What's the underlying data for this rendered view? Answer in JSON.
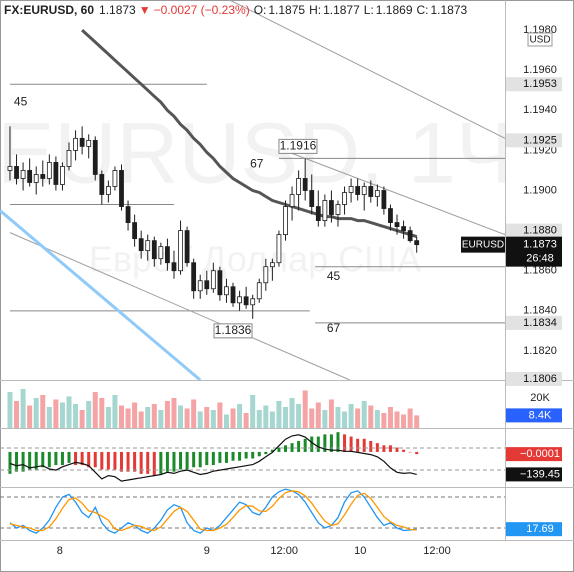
{
  "header": {
    "symbol": "FX:EURUSD, 60",
    "last": "1.1873",
    "arrow": "▼",
    "change": "−0.0027 (−0.23%)",
    "ohlc": [
      [
        "O:",
        "1.1875"
      ],
      [
        "H:",
        "1.1877"
      ],
      [
        "L:",
        "1.1869"
      ],
      [
        "C:",
        "1.1873"
      ]
    ]
  },
  "chart_data": [
    {
      "type": "candlestick",
      "currency": "USD",
      "symbol_label": "EURUSD",
      "countdown": "26:48",
      "watermark": [
        "EURUSD, 1Ч",
        "Евро / Доллар США"
      ],
      "up_color": "#ffffff",
      "down_color": "#1e1e1e",
      "xlim": [
        -1.52,
        75.46
      ],
      "xticks": [
        {
          "value": 7.6,
          "label": "8"
        },
        {
          "value": 30,
          "label": "9"
        },
        {
          "value": 41.8,
          "label": "12:00"
        },
        {
          "value": 53.4,
          "label": "10"
        },
        {
          "value": 65.1,
          "label": "12:00"
        }
      ],
      "ylim": [
        1.18055,
        1.1995
      ],
      "yticks": [
        {
          "value": 1.198,
          "label": "1.1980"
        },
        {
          "value": 1.196,
          "label": "1.1960"
        },
        {
          "value": 1.194,
          "label": "1.1940"
        },
        {
          "value": 1.192,
          "label": "1.1920"
        },
        {
          "value": 1.19,
          "label": "1.1900"
        },
        {
          "value": 1.186,
          "label": "1.1860"
        },
        {
          "value": 1.184,
          "label": "1.1840"
        },
        {
          "value": 1.182,
          "label": "1.1820"
        }
      ],
      "price_labels": [
        {
          "value": 1.1953,
          "label": "1.1953"
        },
        {
          "value": 1.1925,
          "label": "1.1925"
        },
        {
          "value": 1.188,
          "label": "1.1880"
        },
        {
          "value": 1.1834,
          "label": "1.1834"
        },
        {
          "value": 1.1806,
          "label": "1.1806"
        }
      ],
      "levels": [
        {
          "value": 1.1953,
          "from": 0,
          "to": 30
        },
        {
          "value": 1.1893,
          "from": 0,
          "to": 25
        },
        {
          "value": 1.184,
          "from": 0,
          "to": 45.7
        },
        {
          "value": 1.1916,
          "from": 41,
          "to": 75.46
        },
        {
          "value": 1.1862,
          "from": 46.5,
          "to": 75.46
        },
        {
          "value": 1.1834,
          "from": 46.5,
          "to": 75.46
        }
      ],
      "trend_lines": [
        {
          "x": [
            33.5,
            75.46
          ],
          "y": [
            1.1995,
            1.1926
          ],
          "color": "#9e9e9e"
        },
        {
          "x": [
            41.8,
            75.46
          ],
          "y": [
            1.192,
            1.1878
          ],
          "color": "#9e9e9e"
        },
        {
          "x": [
            0,
            51.8
          ],
          "y": [
            1.1879,
            1.18055
          ],
          "color": "#9e9e9e"
        },
        {
          "x": [
            -1.52,
            29
          ],
          "y": [
            1.189,
            1.18055
          ],
          "color": "#90caf9"
        }
      ],
      "annotations": [
        {
          "text": "45",
          "x": 0.6,
          "y": 1.1944
        },
        {
          "text": "67",
          "x": 36.6,
          "y": 1.1913
        },
        {
          "text": "1.1916",
          "x": 43.9,
          "y": 1.1922,
          "box": true
        },
        {
          "text": "1.1836",
          "x": 34,
          "y": 1.183,
          "box": true
        },
        {
          "text": "45",
          "x": 48.3,
          "y": 1.1857
        },
        {
          "text": "67",
          "x": 48.3,
          "y": 1.1831
        }
      ],
      "overlays": [
        {
          "color": "#555555",
          "values": [
            null,
            null,
            null,
            null,
            null,
            null,
            null,
            null,
            null,
            null,
            null,
            1.198,
            1.1977,
            1.1974,
            1.1971,
            1.1968,
            1.1965,
            1.1962,
            1.1959,
            1.1956,
            1.1953,
            1.195,
            1.1947,
            1.1944,
            1.194,
            1.1937,
            1.1933,
            1.193,
            1.1926,
            1.1923,
            1.1919,
            1.1916,
            1.1912,
            1.1909,
            1.1906,
            1.1904,
            1.1902,
            1.19,
            1.1899,
            1.1897,
            1.1895,
            1.1894,
            1.1893,
            1.1892,
            1.1891,
            1.189,
            1.1889,
            1.1888,
            1.1887,
            1.1887,
            1.1886,
            1.1886,
            1.1886,
            1.1885,
            1.1885,
            1.1884,
            1.1883,
            1.1882,
            1.1881,
            1.188,
            1.1879,
            1.1878,
            1.1877
          ]
        }
      ],
      "candles": [
        [
          1.191,
          1.1932,
          1.1905,
          1.1912
        ],
        [
          1.1912,
          1.1918,
          1.1903,
          1.1906
        ],
        [
          1.1906,
          1.1914,
          1.19,
          1.191
        ],
        [
          1.191,
          1.1916,
          1.1902,
          1.1904
        ],
        [
          1.1904,
          1.1912,
          1.1898,
          1.1908
        ],
        [
          1.1908,
          1.1915,
          1.1902,
          1.1906
        ],
        [
          1.1906,
          1.1918,
          1.1903,
          1.1914
        ],
        [
          1.1914,
          1.1917,
          1.19,
          1.1903
        ],
        [
          1.1903,
          1.1914,
          1.19,
          1.1912
        ],
        [
          1.1912,
          1.1924,
          1.191,
          1.192
        ],
        [
          1.192,
          1.193,
          1.1915,
          1.1926
        ],
        [
          1.1926,
          1.1932,
          1.1918,
          1.1922
        ],
        [
          1.1922,
          1.1928,
          1.1916,
          1.1925
        ],
        [
          1.1925,
          1.1927,
          1.1905,
          1.1908
        ],
        [
          1.1908,
          1.191,
          1.1893,
          1.1898
        ],
        [
          1.1898,
          1.1905,
          1.1894,
          1.1902
        ],
        [
          1.1902,
          1.1912,
          1.19,
          1.191
        ],
        [
          1.191,
          1.1913,
          1.189,
          1.1892
        ],
        [
          1.1892,
          1.1895,
          1.188,
          1.1884
        ],
        [
          1.1884,
          1.1888,
          1.1872,
          1.1876
        ],
        [
          1.1876,
          1.188,
          1.1866,
          1.187
        ],
        [
          1.187,
          1.1878,
          1.1865,
          1.1875
        ],
        [
          1.1875,
          1.1877,
          1.1862,
          1.1866
        ],
        [
          1.1866,
          1.1874,
          1.1863,
          1.1872
        ],
        [
          1.1872,
          1.1876,
          1.186,
          1.1864
        ],
        [
          1.1864,
          1.187,
          1.1856,
          1.186
        ],
        [
          1.186,
          1.1885,
          1.1858,
          1.188
        ],
        [
          1.188,
          1.1882,
          1.1862,
          1.1864
        ],
        [
          1.1864,
          1.1866,
          1.1846,
          1.185
        ],
        [
          1.185,
          1.1858,
          1.1846,
          1.1855
        ],
        [
          1.1855,
          1.186,
          1.1848,
          1.1851
        ],
        [
          1.1851,
          1.1864,
          1.1849,
          1.186
        ],
        [
          1.186,
          1.1862,
          1.1845,
          1.1848
        ],
        [
          1.1848,
          1.1856,
          1.1844,
          1.1852
        ],
        [
          1.1852,
          1.1854,
          1.1842,
          1.1844
        ],
        [
          1.1844,
          1.185,
          1.184,
          1.1847
        ],
        [
          1.1847,
          1.1852,
          1.1841,
          1.1843
        ],
        [
          1.1843,
          1.1848,
          1.1836,
          1.1846
        ],
        [
          1.1846,
          1.1856,
          1.1844,
          1.1854
        ],
        [
          1.1854,
          1.1866,
          1.185,
          1.1862
        ],
        [
          1.1862,
          1.1866,
          1.1855,
          1.1864
        ],
        [
          1.1864,
          1.188,
          1.1862,
          1.1878
        ],
        [
          1.1878,
          1.1895,
          1.1875,
          1.1892
        ],
        [
          1.1892,
          1.1902,
          1.1885,
          1.1898
        ],
        [
          1.1898,
          1.191,
          1.189,
          1.1906
        ],
        [
          1.1906,
          1.1916,
          1.1895,
          1.19
        ],
        [
          1.19,
          1.1908,
          1.1888,
          1.1892
        ],
        [
          1.1892,
          1.19,
          1.1882,
          1.1885
        ],
        [
          1.1885,
          1.1898,
          1.1882,
          1.1895
        ],
        [
          1.1895,
          1.19,
          1.1884,
          1.1888
        ],
        [
          1.1888,
          1.1895,
          1.1882,
          1.1893
        ],
        [
          1.1893,
          1.1902,
          1.1888,
          1.1899
        ],
        [
          1.1899,
          1.1906,
          1.1894,
          1.1902
        ],
        [
          1.1902,
          1.1906,
          1.1895,
          1.1898
        ],
        [
          1.1898,
          1.1904,
          1.189,
          1.1902
        ],
        [
          1.1902,
          1.1905,
          1.1894,
          1.1897
        ],
        [
          1.1897,
          1.1903,
          1.1892,
          1.19
        ],
        [
          1.19,
          1.1902,
          1.1888,
          1.1891
        ],
        [
          1.1891,
          1.1893,
          1.188,
          1.1884
        ],
        [
          1.1884,
          1.1888,
          1.1878,
          1.1882
        ],
        [
          1.1882,
          1.1885,
          1.1876,
          1.188
        ],
        [
          1.188,
          1.1882,
          1.1874,
          1.1875
        ],
        [
          1.1875,
          1.1877,
          1.1869,
          1.1873
        ]
      ]
    },
    {
      "type": "bar",
      "up_color": "#a5d6cf",
      "down_color": "#f4a4a4",
      "ylim": [
        0,
        31300
      ],
      "yticks": [
        {
          "value": 20000,
          "label": "20K"
        }
      ],
      "last_label": "8.4K",
      "label_color": "#2962ff",
      "values": [
        24000,
        18000,
        26000,
        15000,
        20000,
        22000,
        14000,
        19000,
        17000,
        21000,
        16000,
        12000,
        18000,
        24000,
        20000,
        14000,
        22000,
        15000,
        13000,
        17000,
        11000,
        14000,
        16000,
        12000,
        18000,
        20000,
        15000,
        13000,
        19000,
        11000,
        14000,
        12000,
        17000,
        9000,
        13000,
        16000,
        10000,
        22000,
        12000,
        15000,
        11000,
        18000,
        14000,
        20000,
        16000,
        25000,
        13000,
        17000,
        12000,
        19000,
        14000,
        11000,
        16000,
        13000,
        18000,
        15000,
        12000,
        10000,
        14000,
        11000,
        9000,
        13000,
        8400
      ]
    },
    {
      "type": "histogram",
      "up_color": "#1b8a2a",
      "down_color": "#e53935",
      "ylim": [
        -0.0016,
        0.001
      ],
      "last_label": "−0.0001",
      "values": [
        -0.001,
        -0.0009,
        -0.0009,
        -0.0008,
        -0.0008,
        -0.0007,
        -0.0007,
        -0.0006,
        -0.0006,
        -0.0005,
        -0.0006,
        -0.0006,
        -0.0007,
        -0.0007,
        -0.0008,
        -0.0008,
        -0.0008,
        -0.0009,
        -0.0009,
        -0.0009,
        -0.001,
        -0.001,
        -0.0011,
        -0.001,
        -0.0009,
        -0.0009,
        -0.0008,
        -0.0008,
        -0.0007,
        -0.0007,
        -0.0006,
        -0.0006,
        -0.0005,
        -0.0005,
        -0.0004,
        -0.0004,
        -0.0003,
        -0.0003,
        -0.0002,
        -0.0001,
        0.0001,
        0.0002,
        0.0003,
        0.0004,
        0.0005,
        0.0006,
        0.0007,
        0.0007,
        0.0008,
        0.0008,
        0.0009,
        0.0008,
        0.0007,
        0.0006,
        0.0006,
        0.0005,
        0.0004,
        0.0003,
        0.0003,
        0.0002,
        0.0001,
        0,
        -0.0001
      ],
      "line": {
        "color": "#111111",
        "y2lim": [
          -254,
          264
        ],
        "levels": [
          100,
          -100
        ],
        "last_label": "−139.45",
        "values": [
          -40,
          -60,
          -50,
          -80,
          -70,
          -60,
          -90,
          -100,
          -70,
          -50,
          -30,
          -40,
          -60,
          -120,
          -180,
          -150,
          -160,
          -200,
          -190,
          -180,
          -170,
          -160,
          -150,
          -140,
          -120,
          -130,
          -110,
          -100,
          -120,
          -140,
          -130,
          -110,
          -100,
          -90,
          -80,
          -70,
          -60,
          -50,
          -20,
          20,
          60,
          120,
          180,
          210,
          220,
          200,
          150,
          110,
          90,
          80,
          80,
          70,
          70,
          60,
          50,
          40,
          20,
          -20,
          -80,
          -120,
          -130,
          -125,
          -139.45
        ]
      }
    },
    {
      "type": "line",
      "ylim": [
        -3.3,
        95.4
      ],
      "levels": [
        80,
        20
      ],
      "label_color": "#2196f3",
      "series": [
        {
          "color": "#2196f3",
          "values": [
            30,
            20,
            25,
            15,
            10,
            20,
            35,
            60,
            80,
            85,
            70,
            50,
            40,
            60,
            30,
            15,
            10,
            20,
            30,
            25,
            15,
            10,
            20,
            35,
            55,
            65,
            60,
            30,
            15,
            10,
            20,
            15,
            25,
            40,
            55,
            70,
            65,
            50,
            45,
            60,
            80,
            90,
            95,
            92,
            85,
            70,
            50,
            30,
            20,
            25,
            40,
            70,
            88,
            92,
            80,
            60,
            40,
            25,
            30,
            20,
            15,
            16,
            17.69
          ]
        },
        {
          "color": "#ff9800",
          "values": [
            28,
            25,
            22,
            20,
            15,
            15,
            22,
            38,
            58,
            75,
            78,
            68,
            53,
            50,
            43,
            35,
            18,
            15,
            20,
            25,
            23,
            17,
            15,
            22,
            37,
            52,
            60,
            52,
            35,
            18,
            15,
            15,
            20,
            27,
            40,
            55,
            63,
            62,
            53,
            52,
            62,
            77,
            88,
            92,
            90,
            82,
            68,
            50,
            33,
            25,
            28,
            45,
            66,
            83,
            87,
            77,
            60,
            42,
            32,
            25,
            22,
            17,
            16
          ]
        }
      ]
    }
  ]
}
